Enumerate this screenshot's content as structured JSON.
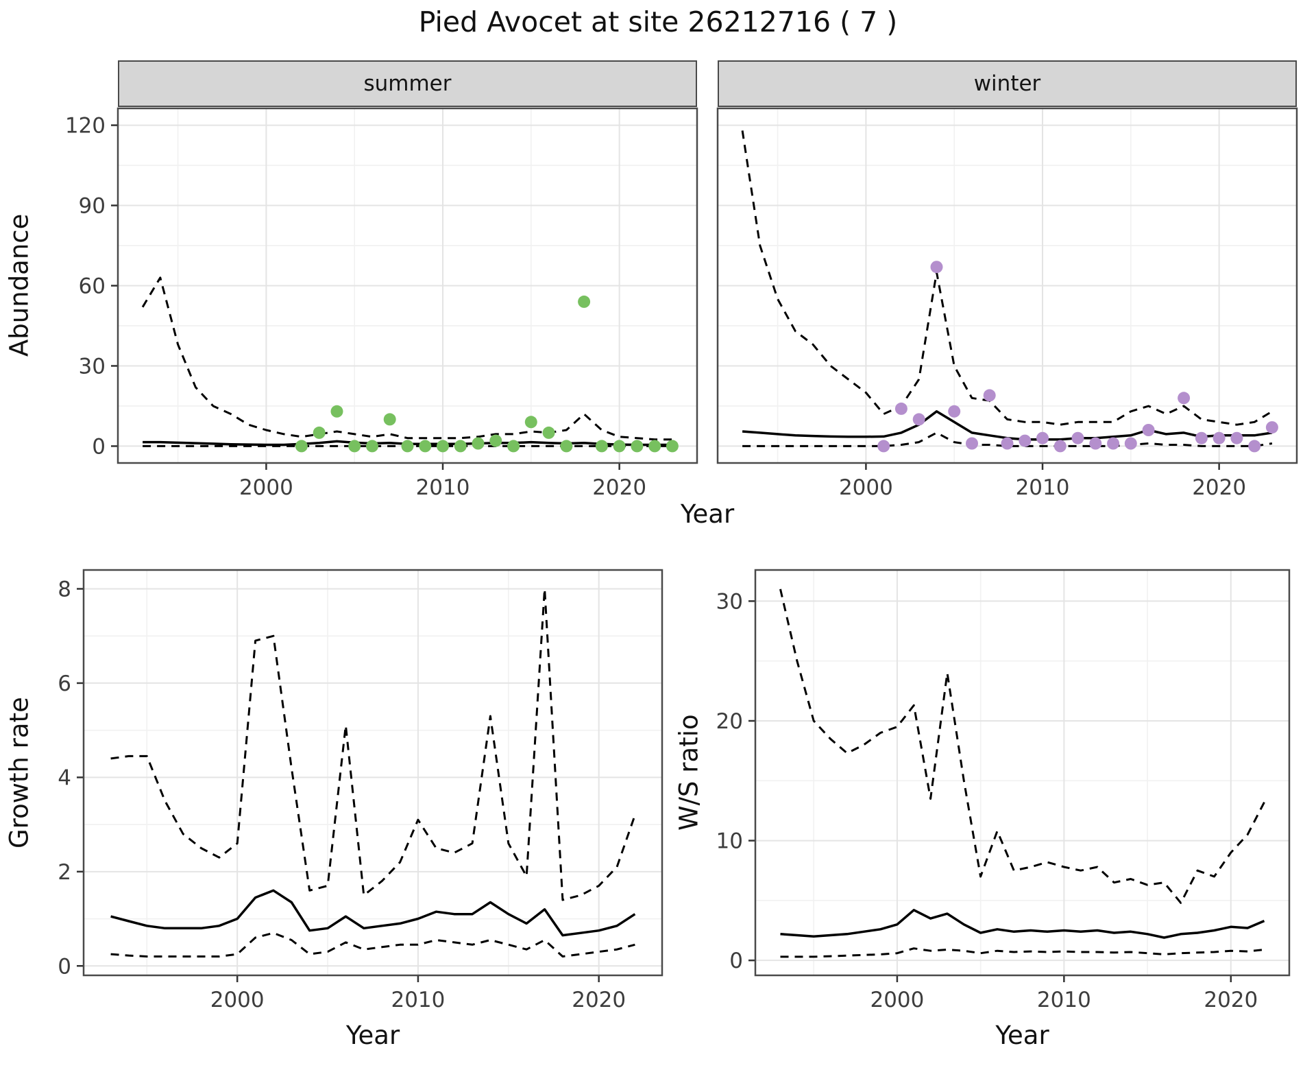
{
  "title": "Pied Avocet at site 26212716 ( 7 )",
  "theme": {
    "background": "#ffffff",
    "grid_major": "#e4e4e4",
    "grid_minor": "#f1f1f1",
    "border": "#4a4a4a",
    "strip_bg": "#d6d6d6",
    "tick": "#333333",
    "tick_label": "#3d3d3d",
    "line_color": "#000000",
    "summer_point_color": "#77c05f",
    "winter_point_color": "#b48fcd"
  },
  "chart_data": [
    {
      "id": "abundance-summer",
      "type": "line",
      "facet": "summer",
      "xlabel": "Year",
      "ylabel": "Abundance",
      "xlim": [
        1991.6,
        2024.4
      ],
      "ylim": [
        -6.3,
        126.3
      ],
      "xticks": [
        2000,
        2010,
        2020
      ],
      "yticks": [
        0,
        30,
        60,
        90,
        120
      ],
      "x": [
        1993,
        1994,
        1995,
        1996,
        1997,
        1998,
        1999,
        2000,
        2001,
        2002,
        2003,
        2004,
        2005,
        2006,
        2007,
        2008,
        2009,
        2010,
        2011,
        2012,
        2013,
        2014,
        2015,
        2016,
        2017,
        2018,
        2019,
        2020,
        2021,
        2022,
        2023
      ],
      "series": [
        {
          "name": "median",
          "style": "solid",
          "color": "#000000",
          "values": [
            1.5,
            1.5,
            1.3,
            1.1,
            0.9,
            0.7,
            0.6,
            0.5,
            0.5,
            0.8,
            1.2,
            1.8,
            1.3,
            1.0,
            1.2,
            0.8,
            0.8,
            0.8,
            0.8,
            1.0,
            1.2,
            1.2,
            1.5,
            1.2,
            1.0,
            1.2,
            0.8,
            0.6,
            0.5,
            0.5,
            0.5
          ]
        },
        {
          "name": "upper-ci",
          "style": "dashed",
          "color": "#000000",
          "values": [
            52,
            63,
            38,
            22,
            15,
            12,
            8,
            6,
            4.5,
            3.5,
            4.5,
            5.5,
            4.5,
            3.5,
            4.5,
            3,
            3,
            3,
            3,
            3.5,
            4.5,
            4.5,
            5.5,
            5,
            6,
            12,
            6,
            3.5,
            3,
            2.5,
            2.5
          ]
        },
        {
          "name": "lower-ci",
          "style": "dashed",
          "color": "#000000",
          "values": [
            0,
            0,
            0,
            0,
            0,
            0,
            0,
            0,
            0,
            0,
            0,
            0,
            0,
            0,
            0,
            0,
            0,
            0,
            0,
            0,
            0,
            0,
            0,
            0,
            0,
            0,
            0,
            0,
            0,
            0,
            0
          ]
        }
      ],
      "points": {
        "name": "observed-summer-abundance",
        "color": "#77c05f",
        "x": [
          2002,
          2003,
          2004,
          2005,
          2006,
          2007,
          2008,
          2009,
          2010,
          2011,
          2012,
          2013,
          2014,
          2015,
          2016,
          2017,
          2018,
          2019,
          2020,
          2021,
          2022,
          2023
        ],
        "y": [
          0,
          5,
          13,
          0,
          0,
          10,
          0,
          0,
          0,
          0,
          1,
          2,
          0,
          9,
          5,
          0,
          54,
          0,
          0,
          0,
          0,
          0
        ]
      }
    },
    {
      "id": "abundance-winter",
      "type": "line",
      "facet": "winter",
      "xlabel": "Year",
      "ylabel": "Abundance",
      "xlim": [
        1991.6,
        2024.4
      ],
      "ylim": [
        -6.3,
        126.3
      ],
      "xticks": [
        2000,
        2010,
        2020
      ],
      "yticks": [
        0,
        30,
        60,
        90,
        120
      ],
      "x": [
        1993,
        1994,
        1995,
        1996,
        1997,
        1998,
        1999,
        2000,
        2001,
        2002,
        2003,
        2004,
        2005,
        2006,
        2007,
        2008,
        2009,
        2010,
        2011,
        2012,
        2013,
        2014,
        2015,
        2016,
        2017,
        2018,
        2019,
        2020,
        2021,
        2022,
        2023
      ],
      "series": [
        {
          "name": "median",
          "style": "solid",
          "color": "#000000",
          "values": [
            5.5,
            5,
            4.5,
            4,
            3.8,
            3.6,
            3.5,
            3.5,
            3.6,
            5,
            8,
            13,
            9,
            5,
            4,
            3,
            2.5,
            2.5,
            2.5,
            3,
            3,
            3.5,
            4,
            6,
            4.5,
            5,
            3.5,
            4,
            4,
            4,
            5
          ]
        },
        {
          "name": "upper-ci",
          "style": "dashed",
          "color": "#000000",
          "values": [
            118,
            75,
            55,
            43,
            38,
            30,
            25,
            20,
            12,
            15,
            25,
            65,
            30,
            18,
            17,
            10,
            9,
            9,
            8,
            9,
            9,
            9,
            13,
            15,
            12,
            15,
            10,
            9,
            8,
            9,
            13
          ]
        },
        {
          "name": "lower-ci",
          "style": "dashed",
          "color": "#000000",
          "values": [
            0,
            0,
            0,
            0,
            0,
            0,
            0,
            0,
            0,
            0.5,
            1.5,
            5,
            1.5,
            0.5,
            0.5,
            0,
            0,
            0,
            0,
            0,
            0,
            0,
            0.5,
            1,
            0.5,
            0.5,
            0,
            0,
            0,
            0,
            1
          ]
        }
      ],
      "points": {
        "name": "observed-winter-abundance",
        "color": "#b48fcd",
        "x": [
          2001,
          2002,
          2003,
          2004,
          2005,
          2006,
          2007,
          2008,
          2009,
          2010,
          2011,
          2012,
          2013,
          2014,
          2015,
          2016,
          2018,
          2019,
          2020,
          2021,
          2022,
          2023
        ],
        "y": [
          0,
          14,
          10,
          67,
          13,
          1,
          19,
          1,
          2,
          3,
          0,
          3,
          1,
          1,
          1,
          6,
          18,
          3,
          3,
          3,
          0,
          7
        ]
      }
    },
    {
      "id": "growth-rate",
      "type": "line",
      "facet": null,
      "xlabel": "Year",
      "ylabel": "Growth rate",
      "xlim": [
        1991.5,
        2023.5
      ],
      "ylim": [
        -0.2,
        8.4
      ],
      "xticks": [
        2000,
        2010,
        2020
      ],
      "yticks": [
        0,
        2,
        4,
        6,
        8
      ],
      "x": [
        1993,
        1994,
        1995,
        1996,
        1997,
        1998,
        1999,
        2000,
        2001,
        2002,
        2003,
        2004,
        2005,
        2006,
        2007,
        2008,
        2009,
        2010,
        2011,
        2012,
        2013,
        2014,
        2015,
        2016,
        2017,
        2018,
        2019,
        2020,
        2021,
        2022
      ],
      "series": [
        {
          "name": "median",
          "style": "solid",
          "color": "#000000",
          "values": [
            1.05,
            0.95,
            0.85,
            0.8,
            0.8,
            0.8,
            0.85,
            1.0,
            1.45,
            1.6,
            1.35,
            0.75,
            0.8,
            1.05,
            0.8,
            0.85,
            0.9,
            1.0,
            1.15,
            1.1,
            1.1,
            1.35,
            1.1,
            0.9,
            1.2,
            0.65,
            0.7,
            0.75,
            0.85,
            1.1
          ]
        },
        {
          "name": "upper-ci",
          "style": "dashed",
          "color": "#000000",
          "values": [
            4.4,
            4.45,
            4.45,
            3.5,
            2.8,
            2.5,
            2.3,
            2.6,
            6.9,
            7.0,
            4.2,
            1.6,
            1.7,
            5.1,
            1.5,
            1.8,
            2.2,
            3.1,
            2.5,
            2.4,
            2.6,
            5.3,
            2.6,
            1.9,
            8.0,
            1.4,
            1.5,
            1.7,
            2.1,
            3.2
          ]
        },
        {
          "name": "lower-ci",
          "style": "dashed",
          "color": "#000000",
          "values": [
            0.25,
            0.22,
            0.2,
            0.2,
            0.2,
            0.2,
            0.2,
            0.25,
            0.6,
            0.7,
            0.55,
            0.25,
            0.3,
            0.5,
            0.35,
            0.4,
            0.45,
            0.45,
            0.55,
            0.5,
            0.45,
            0.55,
            0.45,
            0.35,
            0.55,
            0.2,
            0.25,
            0.3,
            0.35,
            0.45
          ]
        }
      ],
      "points": null
    },
    {
      "id": "ws-ratio",
      "type": "line",
      "facet": null,
      "xlabel": "Year",
      "ylabel": "W/S ratio",
      "xlim": [
        1991.5,
        2023.5
      ],
      "ylim": [
        -1.25,
        32.6
      ],
      "xticks": [
        2000,
        2010,
        2020
      ],
      "yticks": [
        0,
        10,
        20,
        30
      ],
      "x": [
        1993,
        1994,
        1995,
        1996,
        1997,
        1998,
        1999,
        2000,
        2001,
        2002,
        2003,
        2004,
        2005,
        2006,
        2007,
        2008,
        2009,
        2010,
        2011,
        2012,
        2013,
        2014,
        2015,
        2016,
        2017,
        2018,
        2019,
        2020,
        2021,
        2022
      ],
      "series": [
        {
          "name": "median",
          "style": "solid",
          "color": "#000000",
          "values": [
            2.2,
            2.1,
            2.0,
            2.1,
            2.2,
            2.4,
            2.6,
            3.0,
            4.2,
            3.5,
            3.9,
            3.0,
            2.3,
            2.6,
            2.4,
            2.5,
            2.4,
            2.5,
            2.4,
            2.5,
            2.3,
            2.4,
            2.2,
            1.9,
            2.2,
            2.3,
            2.5,
            2.8,
            2.7,
            3.3
          ]
        },
        {
          "name": "upper-ci",
          "style": "dashed",
          "color": "#000000",
          "values": [
            31,
            25,
            20,
            18.5,
            17.3,
            18,
            19,
            19.5,
            21.3,
            13.5,
            24,
            15,
            7,
            10.8,
            7.5,
            7.8,
            8.2,
            7.8,
            7.5,
            7.8,
            6.5,
            6.8,
            6.3,
            6.5,
            4.8,
            7.5,
            7.0,
            9.0,
            10.5,
            13.2
          ]
        },
        {
          "name": "lower-ci",
          "style": "dashed",
          "color": "#000000",
          "values": [
            0.3,
            0.3,
            0.3,
            0.35,
            0.4,
            0.45,
            0.5,
            0.6,
            1.0,
            0.8,
            0.9,
            0.8,
            0.6,
            0.8,
            0.7,
            0.75,
            0.7,
            0.75,
            0.7,
            0.7,
            0.65,
            0.7,
            0.6,
            0.5,
            0.6,
            0.65,
            0.7,
            0.8,
            0.75,
            0.9
          ]
        }
      ],
      "points": null
    }
  ]
}
